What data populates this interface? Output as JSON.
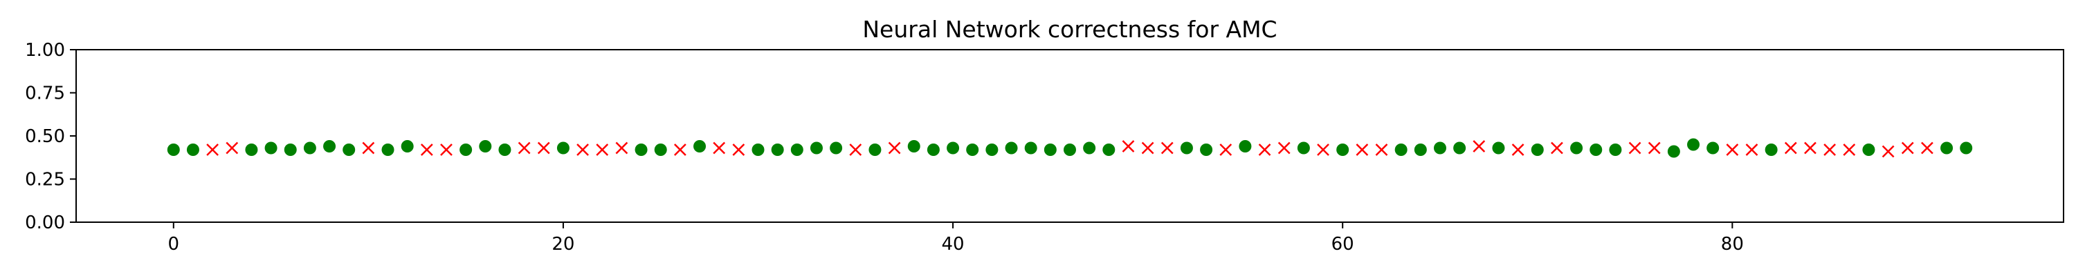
{
  "chart_data": {
    "type": "scatter",
    "title": "Neural Network correctness for AMC",
    "xlabel": "",
    "ylabel": "",
    "xlim": [
      -5,
      97
    ],
    "ylim": [
      0,
      1
    ],
    "xticks": [
      0,
      20,
      40,
      60,
      80
    ],
    "yticks": [
      0.0,
      0.25,
      0.5,
      0.75,
      1.0
    ],
    "ytick_labels": [
      "0.00",
      "0.25",
      "0.50",
      "0.75",
      "1.00"
    ],
    "grid": false,
    "legend": "none",
    "colors": {
      "correct": "#008000",
      "incorrect": "#ff0000"
    },
    "series": [
      {
        "marker": "circle",
        "x": [
          0,
          1,
          4,
          5,
          6,
          7,
          8,
          9,
          11,
          12,
          15,
          16,
          17,
          20,
          24,
          25,
          27,
          30,
          31,
          32,
          33,
          34,
          36,
          38,
          39,
          40,
          41,
          42,
          43,
          44,
          45,
          46,
          47,
          48,
          52,
          53,
          55,
          58,
          60,
          63,
          64,
          65,
          66,
          68,
          70,
          72,
          73,
          74,
          77,
          78,
          79,
          82,
          87,
          91,
          92
        ],
        "y": [
          0.42,
          0.42,
          0.42,
          0.43,
          0.42,
          0.43,
          0.44,
          0.42,
          0.42,
          0.44,
          0.42,
          0.44,
          0.42,
          0.43,
          0.42,
          0.42,
          0.44,
          0.42,
          0.42,
          0.42,
          0.43,
          0.43,
          0.42,
          0.44,
          0.42,
          0.43,
          0.42,
          0.42,
          0.43,
          0.43,
          0.42,
          0.42,
          0.43,
          0.42,
          0.43,
          0.42,
          0.44,
          0.43,
          0.42,
          0.42,
          0.42,
          0.43,
          0.43,
          0.43,
          0.42,
          0.43,
          0.42,
          0.42,
          0.41,
          0.45,
          0.43,
          0.42,
          0.42,
          0.43,
          0.43
        ]
      },
      {
        "marker": "x",
        "x": [
          2,
          3,
          10,
          13,
          14,
          18,
          19,
          21,
          22,
          23,
          26,
          28,
          29,
          35,
          37,
          49,
          50,
          51,
          54,
          56,
          57,
          59,
          61,
          62,
          67,
          69,
          71,
          75,
          76,
          80,
          81,
          83,
          84,
          85,
          86,
          88,
          89,
          90
        ],
        "y": [
          0.42,
          0.43,
          0.43,
          0.42,
          0.42,
          0.43,
          0.43,
          0.42,
          0.42,
          0.43,
          0.42,
          0.43,
          0.42,
          0.42,
          0.43,
          0.44,
          0.43,
          0.43,
          0.42,
          0.42,
          0.43,
          0.42,
          0.42,
          0.42,
          0.44,
          0.42,
          0.43,
          0.43,
          0.43,
          0.42,
          0.42,
          0.43,
          0.43,
          0.42,
          0.42,
          0.41,
          0.43,
          0.43
        ]
      }
    ]
  }
}
